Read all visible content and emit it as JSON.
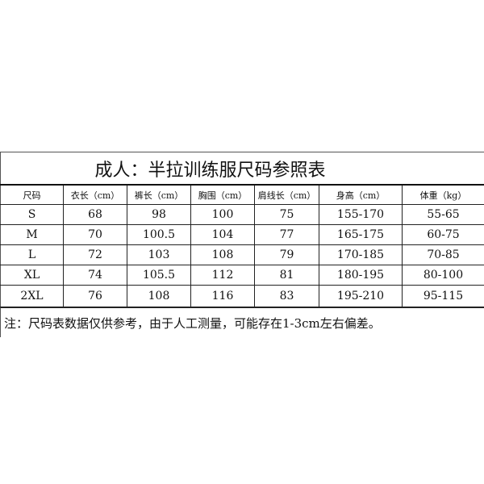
{
  "title": "成人：半拉训练服尺码参照表",
  "headers": [
    "尺码",
    "衣长（cm）",
    "裤长（cm）",
    "胸围（cm）",
    "肩线长（cm）",
    "身高（cm）",
    "体重（kg）"
  ],
  "rows": [
    [
      "S",
      "68",
      "98",
      "100",
      "75",
      "155-170",
      "55-65"
    ],
    [
      "M",
      "70",
      "100.5",
      "104",
      "77",
      "165-175",
      "60-75"
    ],
    [
      "L",
      "72",
      "103",
      "108",
      "79",
      "170-185",
      "70-85"
    ],
    [
      "XL",
      "74",
      "105.5",
      "112",
      "81",
      "180-195",
      "80-100"
    ],
    [
      "2XL",
      "76",
      "108",
      "116",
      "83",
      "195-210",
      "95-115"
    ]
  ],
  "note": "注：尺码表数据仅供参考，由于人工测量，可能存在1-3cm左右偏差。"
}
